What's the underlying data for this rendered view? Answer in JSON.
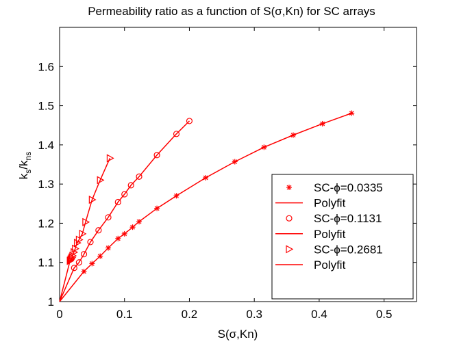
{
  "chart_data": {
    "type": "line",
    "title": "Permeability ratio as a function of S(σ,Kn) for SC arrays",
    "xlabel": "S(σ,Kn)",
    "ylabel": {
      "base": "k",
      "sub1": "s",
      "sep": "/k",
      "sub2": "ns"
    },
    "xlim": [
      0,
      0.55
    ],
    "ylim": [
      1.0,
      1.7
    ],
    "xticks": [
      0,
      0.1,
      0.2,
      0.3,
      0.4,
      0.5
    ],
    "xtick_labels": [
      "0",
      "0.1",
      "0.2",
      "0.3",
      "0.4",
      "0.5"
    ],
    "yticks": [
      1.0,
      1.1,
      1.2,
      1.3,
      1.4,
      1.5,
      1.6
    ],
    "ytick_labels": [
      "1",
      "1.1",
      "1.2",
      "1.3",
      "1.4",
      "1.5",
      "1.6"
    ],
    "grid": false,
    "legend_position": "bottom-right",
    "series_color": "#ff0000",
    "series": [
      {
        "name": "SC-ϕ=0.0335",
        "marker": "asterisk",
        "fit_name": "Polyfit",
        "x": [
          0.0375,
          0.05,
          0.0625,
          0.075,
          0.09,
          0.1,
          0.1125,
          0.1225,
          0.15,
          0.18,
          0.225,
          0.27,
          0.315,
          0.36,
          0.405,
          0.45
        ],
        "y": [
          1.077,
          1.097,
          1.116,
          1.137,
          1.161,
          1.173,
          1.19,
          1.204,
          1.238,
          1.27,
          1.316,
          1.357,
          1.394,
          1.425,
          1.454,
          1.481
        ]
      },
      {
        "name": "SC-ϕ=0.1131",
        "marker": "circle",
        "fit_name": "Polyfit",
        "x": [
          0.0225,
          0.03,
          0.0375,
          0.0475,
          0.06,
          0.075,
          0.09,
          0.1,
          0.11,
          0.1225,
          0.15,
          0.18,
          0.2
        ],
        "y": [
          1.086,
          1.1,
          1.121,
          1.152,
          1.182,
          1.215,
          1.254,
          1.274,
          1.297,
          1.319,
          1.374,
          1.428,
          1.461
        ]
      },
      {
        "name": "SC-ϕ=0.2681",
        "marker": "triangle-right",
        "fit_name": "Polyfit",
        "x": [
          0.016,
          0.017,
          0.018,
          0.019,
          0.02,
          0.022,
          0.024,
          0.027,
          0.03,
          0.035,
          0.04,
          0.05,
          0.0625,
          0.0775
        ],
        "y": [
          1.104,
          1.107,
          1.11,
          1.113,
          1.117,
          1.126,
          1.135,
          1.15,
          1.158,
          1.173,
          1.203,
          1.26,
          1.31,
          1.366
        ]
      }
    ]
  }
}
